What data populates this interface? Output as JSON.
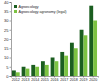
{
  "chart_data": {
    "type": "bar",
    "categories": [
      "2012",
      "2013",
      "2014",
      "2015",
      "2016",
      "2017",
      "2018",
      "2019",
      "2020"
    ],
    "series": [
      {
        "name": "Agroecology",
        "color": "#1b5e20",
        "values": [
          3,
          5,
          6,
          8,
          10,
          13,
          18,
          25,
          38
        ]
      },
      {
        "name": "Agroecology agronomy (legal)",
        "color": "#7cc242",
        "values": [
          2,
          4,
          5,
          6,
          8,
          11,
          15,
          22,
          30
        ]
      }
    ],
    "ylim": [
      0,
      40
    ],
    "yticks": [
      0,
      5,
      10,
      15,
      20,
      25,
      30,
      35,
      40
    ],
    "legend": "top-left"
  }
}
